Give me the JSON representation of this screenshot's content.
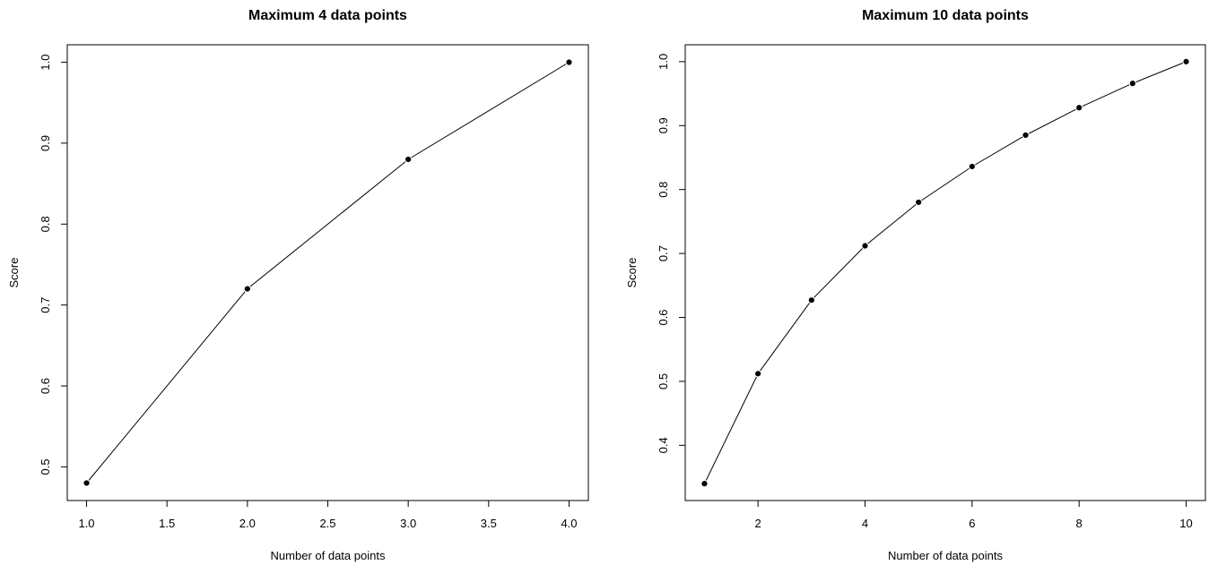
{
  "chart_data": [
    {
      "type": "line",
      "title": "Maximum 4 data points",
      "xlabel": "Number of data points",
      "ylabel": "Score",
      "xlim": [
        0.88,
        4.12
      ],
      "ylim": [
        0.4584,
        1.0216
      ],
      "xticks": [
        1.0,
        1.5,
        2.0,
        2.5,
        3.0,
        3.5,
        4.0
      ],
      "xtick_labels": [
        "1.0",
        "1.5",
        "2.0",
        "2.5",
        "3.0",
        "3.5",
        "4.0"
      ],
      "yticks": [
        0.5,
        0.6,
        0.7,
        0.8,
        0.9,
        1.0
      ],
      "ytick_labels": [
        "0.5",
        "0.6",
        "0.7",
        "0.8",
        "0.9",
        "1.0"
      ],
      "grid": false,
      "x": [
        1,
        2,
        3,
        4
      ],
      "values": [
        0.48,
        0.72,
        0.88,
        1.0
      ]
    },
    {
      "type": "line",
      "title": "Maximum 10 data points",
      "xlabel": "Number of data points",
      "ylabel": "Score",
      "xlim": [
        0.64,
        10.36
      ],
      "ylim": [
        0.3136,
        1.0264
      ],
      "xticks": [
        2,
        4,
        6,
        8,
        10
      ],
      "xtick_labels": [
        "2",
        "4",
        "6",
        "8",
        "10"
      ],
      "yticks": [
        0.4,
        0.5,
        0.6,
        0.7,
        0.8,
        0.9,
        1.0
      ],
      "ytick_labels": [
        "0.4",
        "0.5",
        "0.6",
        "0.7",
        "0.8",
        "0.9",
        "1.0"
      ],
      "grid": false,
      "x": [
        1,
        2,
        3,
        4,
        5,
        6,
        7,
        8,
        9,
        10
      ],
      "values": [
        0.34,
        0.512,
        0.627,
        0.712,
        0.78,
        0.836,
        0.885,
        0.928,
        0.966,
        1.0
      ]
    }
  ]
}
